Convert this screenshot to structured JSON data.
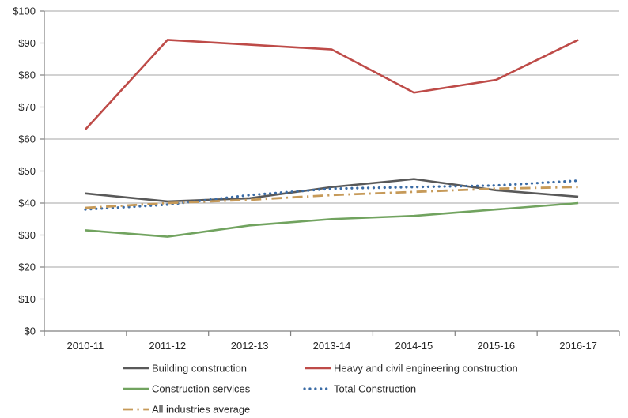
{
  "chart_data": {
    "type": "line",
    "title": "",
    "xlabel": "",
    "ylabel": "",
    "categories": [
      "2010-11",
      "2011-12",
      "2012-13",
      "2013-14",
      "2014-15",
      "2015-16",
      "2016-17"
    ],
    "series": [
      {
        "name": "Building construction",
        "color": "#595959",
        "dash": "solid",
        "values": [
          43,
          40.5,
          41.5,
          45,
          47.5,
          44,
          42
        ]
      },
      {
        "name": "Heavy and civil engineering construction",
        "color": "#BE4B48",
        "dash": "solid",
        "values": [
          63,
          91,
          89.5,
          88,
          74.5,
          78.5,
          91
        ]
      },
      {
        "name": "Construction services",
        "color": "#71A35F",
        "dash": "solid",
        "values": [
          31.5,
          29.5,
          33,
          35,
          36,
          38,
          40
        ]
      },
      {
        "name": "Total Construction",
        "color": "#3A6BA5",
        "dash": "dotted",
        "values": [
          38,
          39.5,
          42.5,
          44.5,
          45,
          45.5,
          47
        ]
      },
      {
        "name": "All industries average",
        "color": "#C69A59",
        "dash": "dash-dot",
        "values": [
          38.5,
          40,
          41,
          42.5,
          43.5,
          44.5,
          45
        ]
      }
    ],
    "ylim": [
      0,
      100
    ],
    "ytick_step": 10,
    "ytick_labels": [
      "$0",
      "$10",
      "$20",
      "$30",
      "$40",
      "$50",
      "$60",
      "$70",
      "$80",
      "$90",
      "$100"
    ],
    "grid": true,
    "legend_position": "bottom",
    "legend_rows": [
      [
        "Building construction",
        "Heavy and civil engineering construction"
      ],
      [
        "Construction services",
        "Total Construction"
      ],
      [
        "All industries average"
      ]
    ],
    "colors": {
      "gridline": "#A6A6A6",
      "axis": "#808080",
      "text": "#262626",
      "background": "#FFFFFF"
    }
  }
}
